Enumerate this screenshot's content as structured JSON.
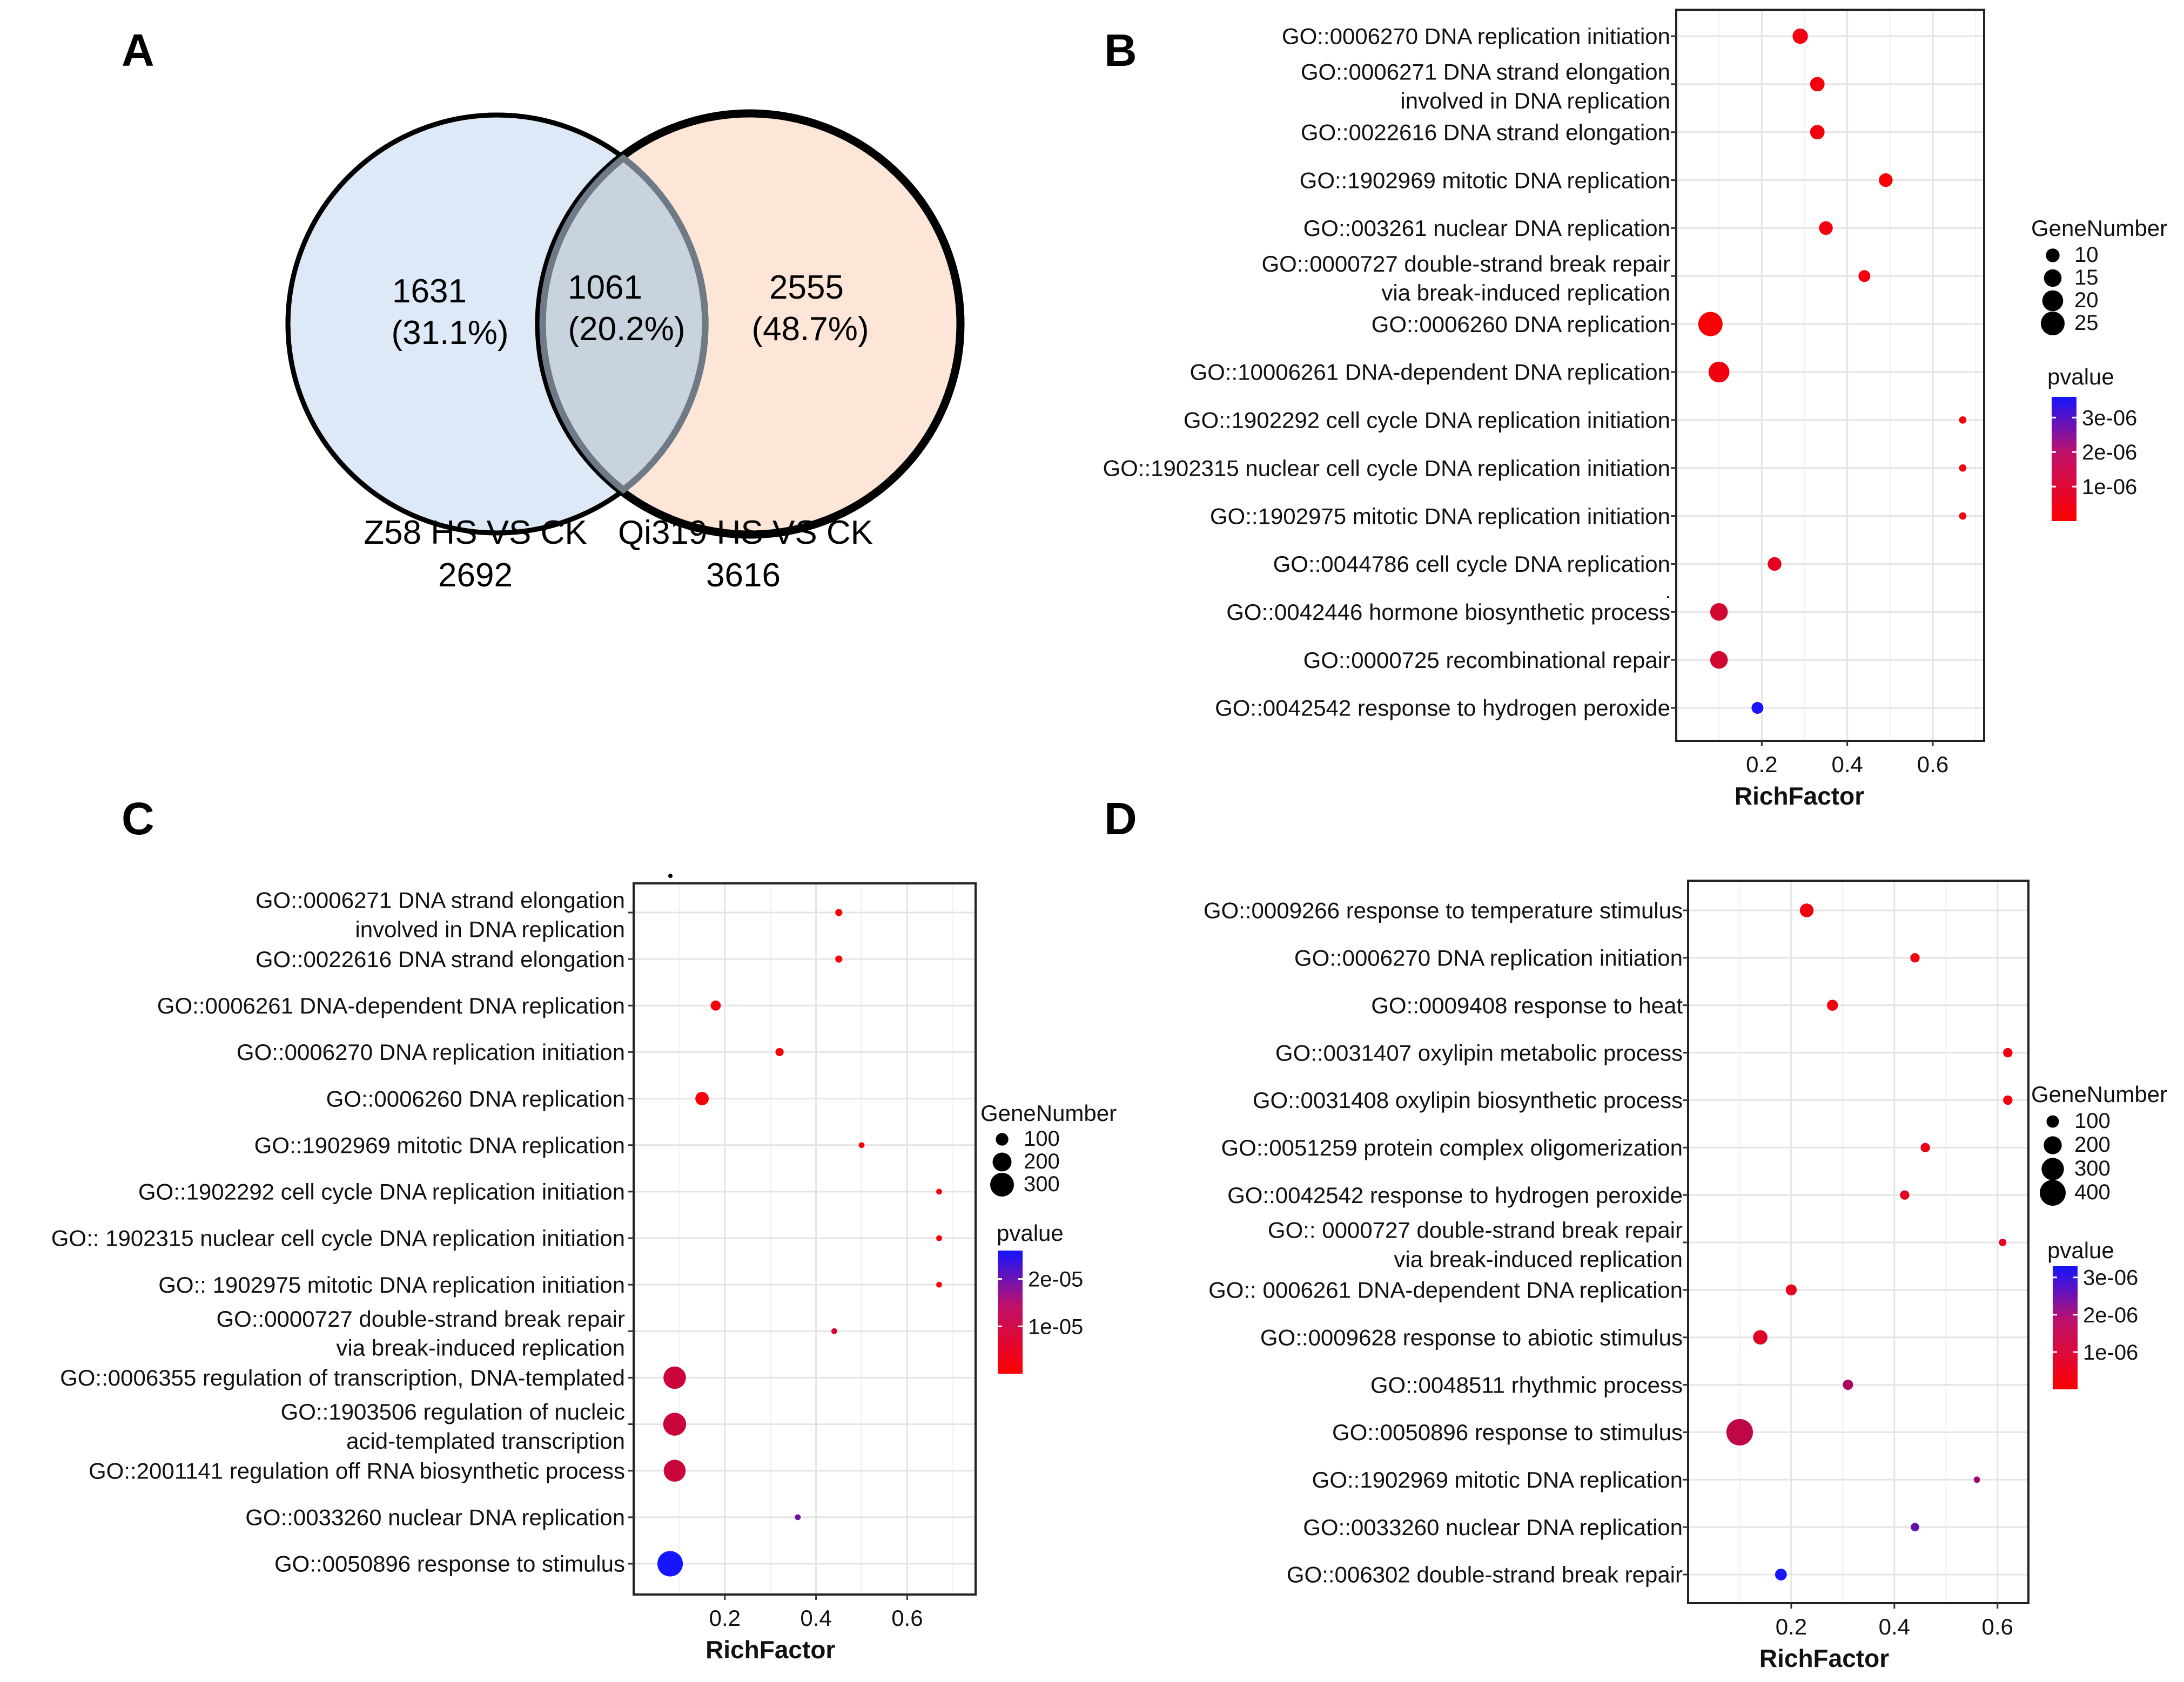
{
  "panel_letters": [
    "A",
    "B",
    "C",
    "D"
  ],
  "venn": {
    "left": {
      "count": "1631",
      "percent": "(31.1%)",
      "color": "#dde9f6"
    },
    "middle": {
      "count": "1061",
      "percent": "(20.2%)",
      "color": "#c8d3dd"
    },
    "right": {
      "count": "2555",
      "percent": "(48.7%)",
      "color": "#fde6d8"
    },
    "left_set_label": "Z58 HS VS CK",
    "left_set_total": "2692",
    "right_set_label": "Qi319 HS VS CK",
    "right_set_total": "3616"
  },
  "chart_data": [
    {
      "panel": "B",
      "type": "scatter",
      "xlabel": "RichFactor",
      "xlim": [
        0.0,
        0.72
      ],
      "xticks": [
        0.2,
        0.4,
        0.6
      ],
      "size_legend": {
        "title": "GeneNumber",
        "values": [
          10,
          15,
          20,
          25
        ]
      },
      "color_legend": {
        "title": "pvalue",
        "ticks": [
          "3e-06",
          "2e-06",
          "1e-06"
        ],
        "ticks_value": [
          3e-06,
          2e-06,
          1e-06
        ],
        "range": [
          0,
          3.6e-06
        ],
        "low_color": "#ff0000",
        "high_color": "#1515ff"
      },
      "categories": [
        [
          "GO::0006270 DNA replication initiation"
        ],
        [
          "GO::0006271 DNA strand elongation",
          "involved in DNA replication"
        ],
        [
          "GO::0022616 DNA strand elongation"
        ],
        [
          "GO::1902969 mitotic DNA replication"
        ],
        [
          "GO::003261 nuclear DNA replication"
        ],
        [
          "GO::0000727 double-strand break repair",
          "via break-induced replication"
        ],
        [
          "GO::0006260 DNA replication"
        ],
        [
          "GO::10006261 DNA-dependent DNA replication"
        ],
        [
          "GO::1902292 cell cycle DNA replication initiation"
        ],
        [
          "GO::1902315 nuclear cell cycle DNA replication initiation"
        ],
        [
          "GO::1902975 mitotic DNA replication initiation"
        ],
        [
          "GO::0044786 cell cycle DNA replication"
        ],
        [
          "GO::0042446 hormone biosynthetic process"
        ],
        [
          "GO::0000725 recombinational repair"
        ],
        [
          "GO::0042542 response to hydrogen peroxide"
        ]
      ],
      "points": [
        {
          "x": 0.29,
          "gene": 12,
          "p": 2e-07
        },
        {
          "x": 0.33,
          "gene": 11,
          "p": 2e-07
        },
        {
          "x": 0.33,
          "gene": 11,
          "p": 2e-07
        },
        {
          "x": 0.49,
          "gene": 10,
          "p": 1e-07
        },
        {
          "x": 0.35,
          "gene": 10,
          "p": 2e-07
        },
        {
          "x": 0.44,
          "gene": 8,
          "p": 2e-07
        },
        {
          "x": 0.08,
          "gene": 26,
          "p": 1e-07
        },
        {
          "x": 0.1,
          "gene": 20,
          "p": 2e-07
        },
        {
          "x": 0.67,
          "gene": 4,
          "p": 2e-07
        },
        {
          "x": 0.67,
          "gene": 4,
          "p": 2e-07
        },
        {
          "x": 0.67,
          "gene": 4,
          "p": 2e-07
        },
        {
          "x": 0.23,
          "gene": 10,
          "p": 4e-07
        },
        {
          "x": 0.1,
          "gene": 15,
          "p": 7e-07
        },
        {
          "x": 0.1,
          "gene": 15,
          "p": 7e-07
        },
        {
          "x": 0.19,
          "gene": 8,
          "p": 3.5e-06
        }
      ]
    },
    {
      "panel": "C",
      "type": "scatter",
      "xlabel": "RichFactor",
      "xlim": [
        0.0,
        0.75
      ],
      "xticks": [
        0.2,
        0.4,
        0.6
      ],
      "size_legend": {
        "title": "GeneNumber",
        "values": [
          100,
          200,
          300
        ]
      },
      "color_legend": {
        "title": "pvalue",
        "ticks": [
          "2e-05",
          "1e-05"
        ],
        "ticks_value": [
          2e-05,
          1e-05
        ],
        "range": [
          0,
          2.6e-05
        ],
        "low_color": "#ff0000",
        "high_color": "#1515ff"
      },
      "categories": [
        [
          "GO::0006271 DNA strand elongation",
          "involved in DNA replication"
        ],
        [
          "GO::0022616 DNA strand elongation"
        ],
        [
          "GO::0006261 DNA-dependent DNA replication"
        ],
        [
          "GO::0006270 DNA replication initiation"
        ],
        [
          "GO::0006260 DNA replication"
        ],
        [
          "GO::1902969 mitotic DNA replication"
        ],
        [
          "GO::1902292 cell cycle DNA replication initiation"
        ],
        [
          "GO:: 1902315 nuclear cell cycle DNA replication initiation"
        ],
        [
          "GO:: 1902975 mitotic DNA replication initiation"
        ],
        [
          "GO::0000727 double-strand break repair",
          "via break-induced replication"
        ],
        [
          "GO::0006355 regulation of transcription, DNA-templated"
        ],
        [
          "GO::1903506 regulation of nucleic",
          "acid-templated transcription"
        ],
        [
          "GO::2001141 regulation off RNA biosynthetic process"
        ],
        [
          "GO::0033260 nuclear DNA replication"
        ],
        [
          "GO::0050896 response to stimulus"
        ]
      ],
      "points": [
        {
          "x": 0.45,
          "gene": 40,
          "p": 1e-06
        },
        {
          "x": 0.45,
          "gene": 40,
          "p": 1e-06
        },
        {
          "x": 0.18,
          "gene": 70,
          "p": 1e-06
        },
        {
          "x": 0.32,
          "gene": 50,
          "p": 1e-06
        },
        {
          "x": 0.15,
          "gene": 110,
          "p": 1e-06
        },
        {
          "x": 0.5,
          "gene": 30,
          "p": 1e-06
        },
        {
          "x": 0.67,
          "gene": 20,
          "p": 1e-06
        },
        {
          "x": 0.67,
          "gene": 20,
          "p": 1e-06
        },
        {
          "x": 0.67,
          "gene": 20,
          "p": 1e-06
        },
        {
          "x": 0.44,
          "gene": 25,
          "p": 5e-06
        },
        {
          "x": 0.09,
          "gene": 270,
          "p": 6e-06
        },
        {
          "x": 0.09,
          "gene": 280,
          "p": 6e-06
        },
        {
          "x": 0.09,
          "gene": 260,
          "p": 6e-06
        },
        {
          "x": 0.36,
          "gene": 30,
          "p": 1.6e-05
        },
        {
          "x": 0.08,
          "gene": 340,
          "p": 2.6e-05
        }
      ]
    },
    {
      "panel": "D",
      "type": "scatter",
      "xlabel": "RichFactor",
      "xlim": [
        0.0,
        0.66
      ],
      "xticks": [
        0.2,
        0.4,
        0.6
      ],
      "size_legend": {
        "title": "GeneNumber",
        "values": [
          100,
          200,
          300,
          400
        ]
      },
      "color_legend": {
        "title": "pvalue",
        "ticks": [
          "3e-06",
          "2e-06",
          "1e-06"
        ],
        "ticks_value": [
          3e-06,
          2e-06,
          1e-06
        ],
        "range": [
          0,
          3.3e-06
        ],
        "low_color": "#ff0000",
        "high_color": "#1515ff"
      },
      "categories": [
        [
          "GO::0009266 response to  temperature stimulus"
        ],
        [
          "GO::0006270 DNA replication initiation"
        ],
        [
          "GO::0009408 response to heat"
        ],
        [
          "GO::0031407 oxylipin metabolic process"
        ],
        [
          "GO::0031408 oxylipin biosynthetic process"
        ],
        [
          "GO::0051259 protein complex oligomerization"
        ],
        [
          "GO::0042542 response to hydrogen peroxide"
        ],
        [
          "GO:: 0000727 double-strand break repair",
          "via break-induced replication"
        ],
        [
          "GO:: 0006261 DNA-dependent DNA replication"
        ],
        [
          "GO::0009628 response to abiotic stimulus"
        ],
        [
          "GO::0048511 rhythmic process"
        ],
        [
          "GO::0050896 response to stimulus"
        ],
        [
          "GO::1902969 mitotic DNA replication"
        ],
        [
          "GO::0033260 nuclear DNA replication"
        ],
        [
          "GO::006302 double-strand break repair"
        ]
      ],
      "points": [
        {
          "x": 0.23,
          "gene": 120,
          "p": 2e-07
        },
        {
          "x": 0.44,
          "gene": 60,
          "p": 2e-07
        },
        {
          "x": 0.28,
          "gene": 80,
          "p": 2e-07
        },
        {
          "x": 0.62,
          "gene": 60,
          "p": 2e-07
        },
        {
          "x": 0.62,
          "gene": 60,
          "p": 2e-07
        },
        {
          "x": 0.46,
          "gene": 60,
          "p": 3e-07
        },
        {
          "x": 0.42,
          "gene": 60,
          "p": 4e-07
        },
        {
          "x": 0.61,
          "gene": 40,
          "p": 4e-07
        },
        {
          "x": 0.2,
          "gene": 80,
          "p": 4e-07
        },
        {
          "x": 0.14,
          "gene": 130,
          "p": 5e-07
        },
        {
          "x": 0.31,
          "gene": 70,
          "p": 1.2e-06
        },
        {
          "x": 0.1,
          "gene": 420,
          "p": 9e-07
        },
        {
          "x": 0.56,
          "gene": 30,
          "p": 1.4e-06
        },
        {
          "x": 0.44,
          "gene": 50,
          "p": 2.2e-06
        },
        {
          "x": 0.18,
          "gene": 90,
          "p": 3.3e-06
        }
      ]
    }
  ]
}
